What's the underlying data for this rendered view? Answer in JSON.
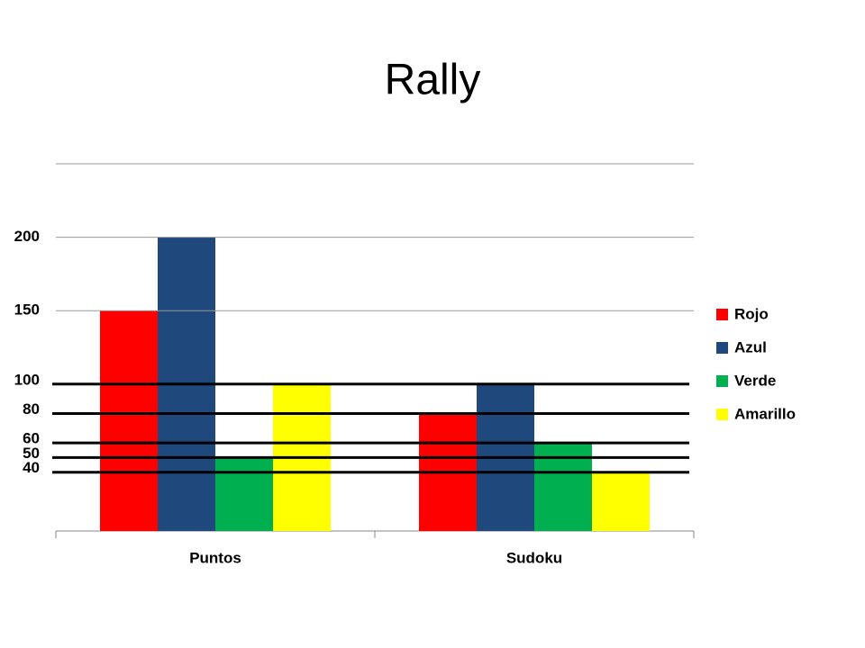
{
  "chart_data": {
    "type": "bar",
    "title": "Rally",
    "categories": [
      "Puntos",
      "Sudoku"
    ],
    "series": [
      {
        "name": "Rojo",
        "color": "#ff0000",
        "values": [
          150,
          80
        ]
      },
      {
        "name": "Azul",
        "color": "#1f497d",
        "values": [
          200,
          100
        ]
      },
      {
        "name": "Verde",
        "color": "#00b050",
        "values": [
          50,
          60
        ]
      },
      {
        "name": "Amarillo",
        "color": "#ffff00",
        "values": [
          100,
          40
        ]
      }
    ],
    "ylim": [
      0,
      250
    ],
    "yticks": [
      40,
      50,
      60,
      80,
      100,
      150,
      200
    ],
    "grid": true,
    "legend": "right"
  }
}
